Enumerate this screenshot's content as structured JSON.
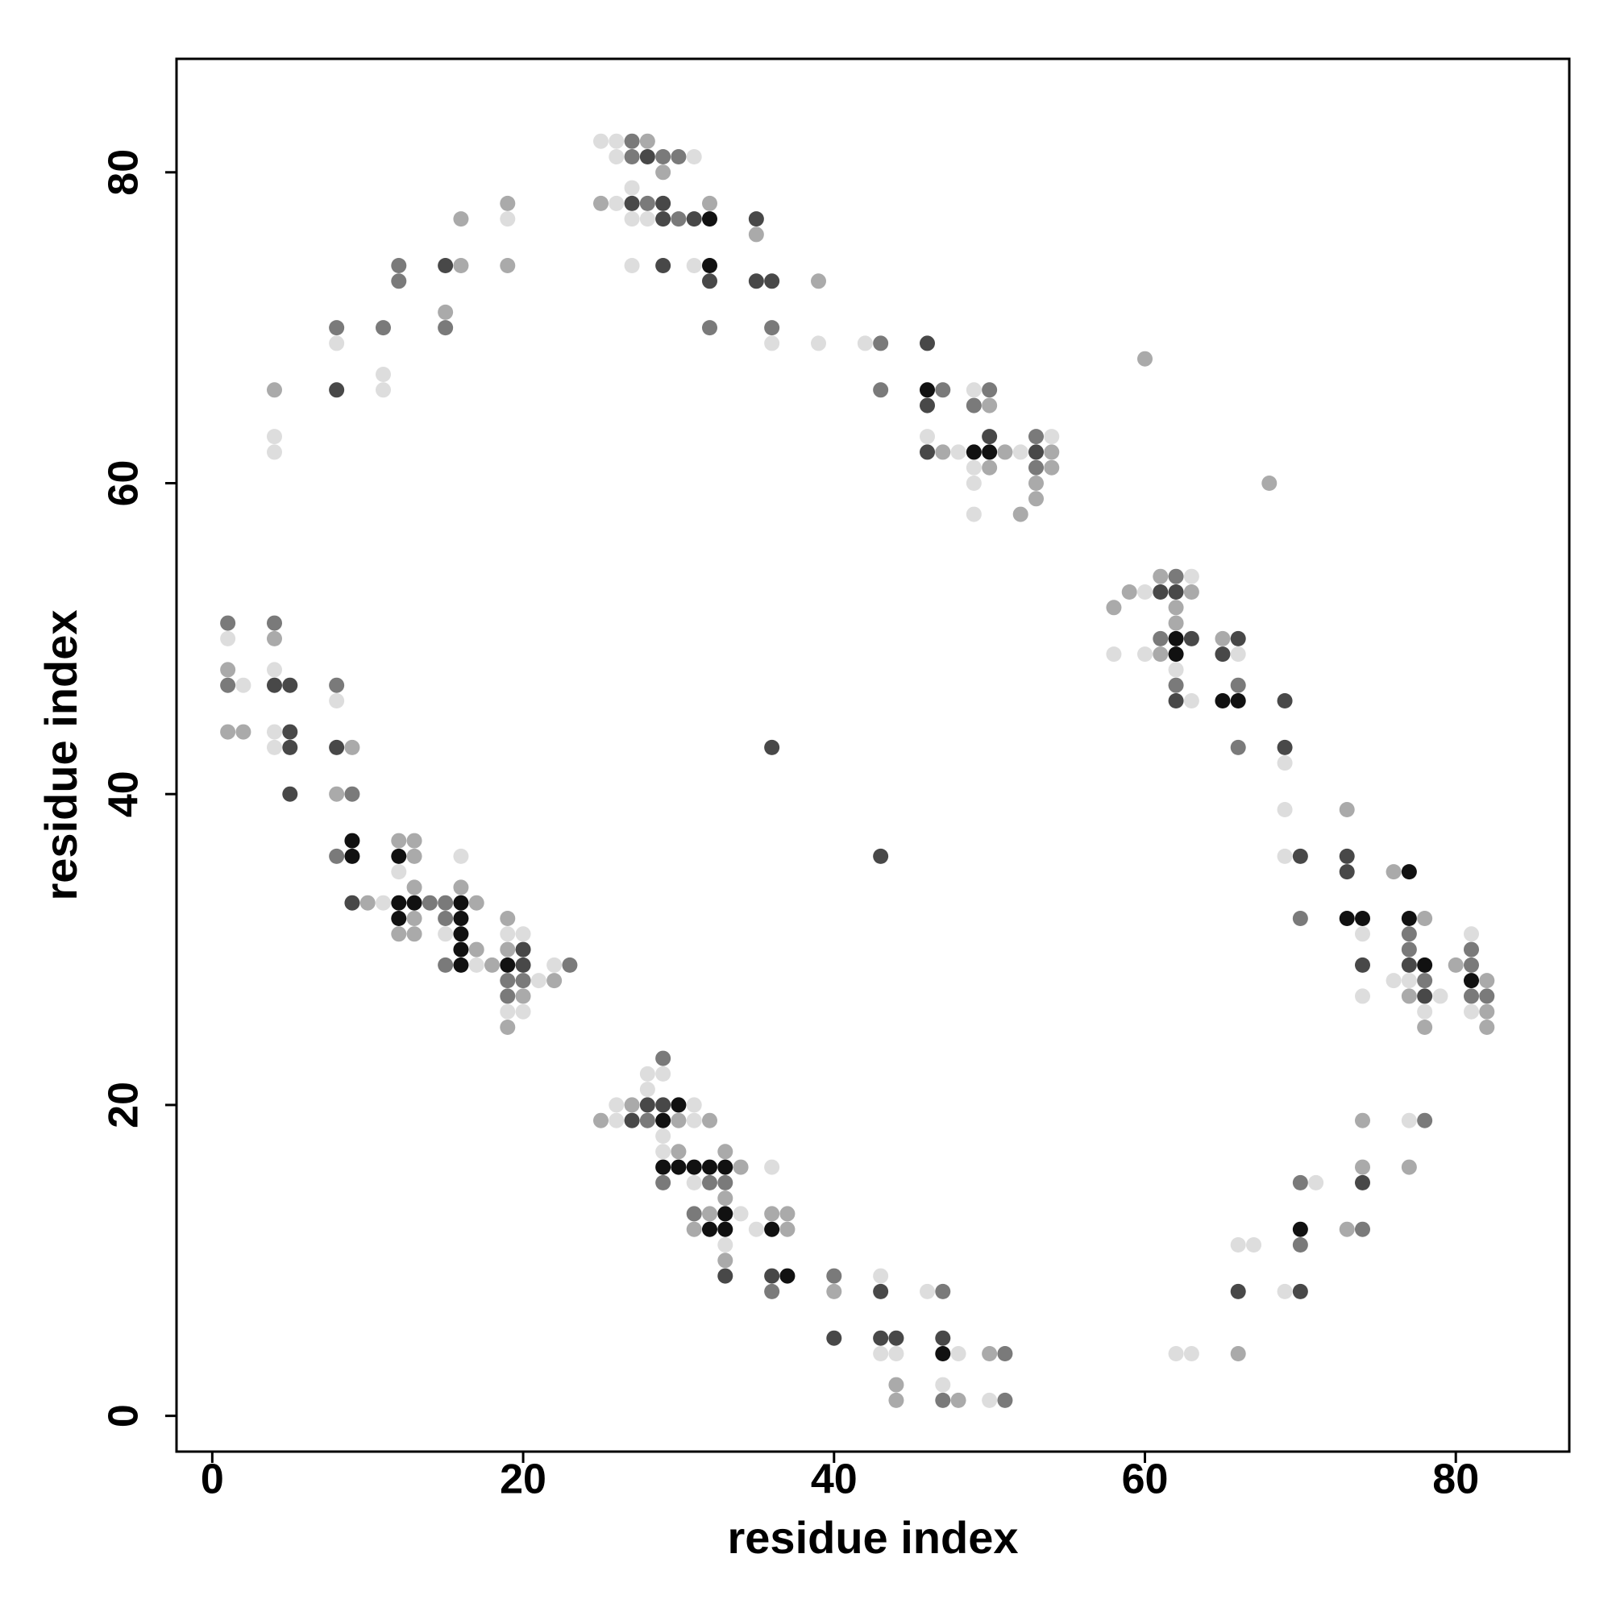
{
  "chart_data": {
    "type": "scatter",
    "xlabel": "residue index",
    "ylabel": "residue index",
    "xlim": [
      -2.3,
      87.3
    ],
    "ylim": [
      -2.3,
      87.3
    ],
    "xticks": [
      0,
      20,
      40,
      60,
      80
    ],
    "yticks": [
      0,
      20,
      40,
      60,
      80
    ],
    "series": [
      {
        "color": "#111111",
        "x": [
          9,
          9,
          12,
          12,
          13,
          16,
          12,
          16,
          16,
          16,
          16,
          19,
          32,
          32,
          46,
          49,
          50,
          62,
          62,
          65,
          66,
          73,
          74,
          77,
          77,
          78,
          81,
          30,
          29,
          29,
          30,
          31,
          32,
          33,
          33,
          32,
          33,
          36,
          37,
          47,
          70
        ],
        "y": [
          37,
          36,
          36,
          33,
          33,
          33,
          32,
          32,
          31,
          30,
          29,
          29,
          77,
          74,
          66,
          62,
          62,
          50,
          49,
          46,
          46,
          32,
          32,
          35,
          32,
          29,
          28,
          20,
          19,
          16,
          16,
          16,
          16,
          16,
          13,
          12,
          12,
          12,
          9,
          4,
          12
        ]
      },
      {
        "color": "#484848",
        "x": [
          4,
          5,
          5,
          5,
          5,
          8,
          9,
          20,
          20,
          8,
          15,
          28,
          27,
          29,
          29,
          31,
          35,
          29,
          32,
          35,
          36,
          46,
          46,
          46,
          50,
          53,
          61,
          62,
          63,
          62,
          66,
          65,
          69,
          69,
          70,
          36,
          43,
          73,
          73,
          74,
          77,
          78,
          28,
          29,
          27,
          33,
          36,
          43,
          40,
          43,
          44,
          47,
          66,
          70,
          74
        ],
        "y": [
          47,
          47,
          44,
          43,
          40,
          43,
          33,
          30,
          29,
          66,
          74,
          81,
          78,
          78,
          77,
          77,
          77,
          74,
          73,
          73,
          73,
          69,
          65,
          62,
          63,
          62,
          53,
          53,
          50,
          46,
          50,
          49,
          46,
          43,
          36,
          43,
          36,
          36,
          35,
          29,
          29,
          27,
          20,
          20,
          19,
          9,
          9,
          8,
          5,
          5,
          5,
          5,
          8,
          8,
          15
        ]
      },
      {
        "color": "#7a7a7a",
        "x": [
          1,
          1,
          4,
          8,
          9,
          8,
          14,
          15,
          15,
          15,
          19,
          20,
          23,
          19,
          8,
          11,
          12,
          12,
          15,
          27,
          27,
          29,
          30,
          28,
          30,
          32,
          36,
          43,
          43,
          47,
          50,
          49,
          53,
          53,
          62,
          61,
          62,
          66,
          66,
          70,
          77,
          77,
          78,
          81,
          81,
          81,
          82,
          29,
          28,
          29,
          32,
          33,
          31,
          36,
          40,
          47,
          51,
          47,
          51,
          70,
          70,
          74,
          78
        ],
        "y": [
          51,
          47,
          51,
          47,
          40,
          36,
          33,
          33,
          32,
          29,
          28,
          28,
          29,
          27,
          70,
          70,
          74,
          73,
          70,
          82,
          81,
          81,
          81,
          78,
          77,
          70,
          70,
          69,
          66,
          66,
          66,
          65,
          63,
          61,
          54,
          50,
          47,
          47,
          43,
          32,
          31,
          30,
          28,
          29,
          30,
          27,
          27,
          23,
          19,
          15,
          15,
          15,
          13,
          8,
          9,
          8,
          4,
          1,
          1,
          11,
          15,
          12,
          19
        ]
      },
      {
        "color": "#aaaaaa",
        "x": [
          1,
          1,
          2,
          4,
          9,
          8,
          10,
          12,
          13,
          13,
          13,
          17,
          13,
          12,
          13,
          16,
          17,
          18,
          19,
          19,
          22,
          20,
          19,
          4,
          16,
          15,
          16,
          19,
          19,
          28,
          29,
          25,
          32,
          35,
          39,
          47,
          50,
          50,
          51,
          53,
          53,
          52,
          54,
          54,
          60,
          68,
          58,
          59,
          61,
          63,
          62,
          62,
          61,
          65,
          73,
          76,
          78,
          77,
          78,
          80,
          82,
          82,
          82,
          27,
          25,
          30,
          32,
          30,
          33,
          34,
          33,
          32,
          31,
          33,
          36,
          37,
          37,
          40,
          50,
          44,
          44,
          48,
          66,
          73,
          74,
          74,
          77
        ],
        "y": [
          48,
          44,
          44,
          50,
          43,
          40,
          33,
          37,
          37,
          36,
          34,
          33,
          32,
          31,
          31,
          34,
          30,
          29,
          32,
          30,
          28,
          27,
          25,
          66,
          74,
          71,
          77,
          78,
          74,
          82,
          80,
          78,
          78,
          76,
          73,
          62,
          65,
          61,
          62,
          60,
          59,
          58,
          62,
          61,
          68,
          60,
          52,
          53,
          54,
          53,
          52,
          51,
          49,
          50,
          39,
          35,
          32,
          27,
          25,
          29,
          28,
          26,
          25,
          20,
          19,
          19,
          19,
          17,
          17,
          16,
          14,
          13,
          12,
          10,
          13,
          13,
          12,
          8,
          4,
          2,
          1,
          1,
          4,
          12,
          16,
          19,
          16
        ]
      },
      {
        "color": "#dddddd",
        "x": [
          1,
          2,
          4,
          4,
          4,
          8,
          11,
          12,
          15,
          16,
          17,
          19,
          20,
          21,
          22,
          19,
          20,
          4,
          4,
          8,
          11,
          11,
          19,
          25,
          26,
          26,
          31,
          27,
          26,
          27,
          28,
          27,
          31,
          36,
          39,
          42,
          46,
          48,
          49,
          49,
          49,
          49,
          52,
          54,
          60,
          63,
          60,
          58,
          62,
          63,
          66,
          69,
          69,
          69,
          74,
          74,
          76,
          77,
          79,
          78,
          81,
          81,
          28,
          29,
          28,
          26,
          31,
          26,
          31,
          29,
          29,
          31,
          34,
          33,
          35,
          36,
          43,
          46,
          43,
          44,
          48,
          47,
          50,
          62,
          63,
          66,
          67,
          69,
          71,
          77
        ],
        "y": [
          50,
          47,
          48,
          44,
          43,
          46,
          33,
          35,
          31,
          36,
          29,
          31,
          31,
          28,
          29,
          26,
          26,
          63,
          62,
          69,
          67,
          66,
          77,
          82,
          82,
          81,
          81,
          79,
          78,
          77,
          77,
          74,
          74,
          69,
          69,
          69,
          63,
          62,
          66,
          61,
          60,
          58,
          62,
          63,
          53,
          54,
          49,
          49,
          48,
          46,
          49,
          42,
          39,
          36,
          31,
          27,
          28,
          28,
          27,
          26,
          31,
          26,
          22,
          22,
          21,
          20,
          20,
          19,
          19,
          18,
          17,
          15,
          13,
          11,
          12,
          16,
          9,
          8,
          4,
          4,
          4,
          2,
          1,
          4,
          4,
          11,
          11,
          8,
          15,
          19
        ]
      }
    ]
  }
}
